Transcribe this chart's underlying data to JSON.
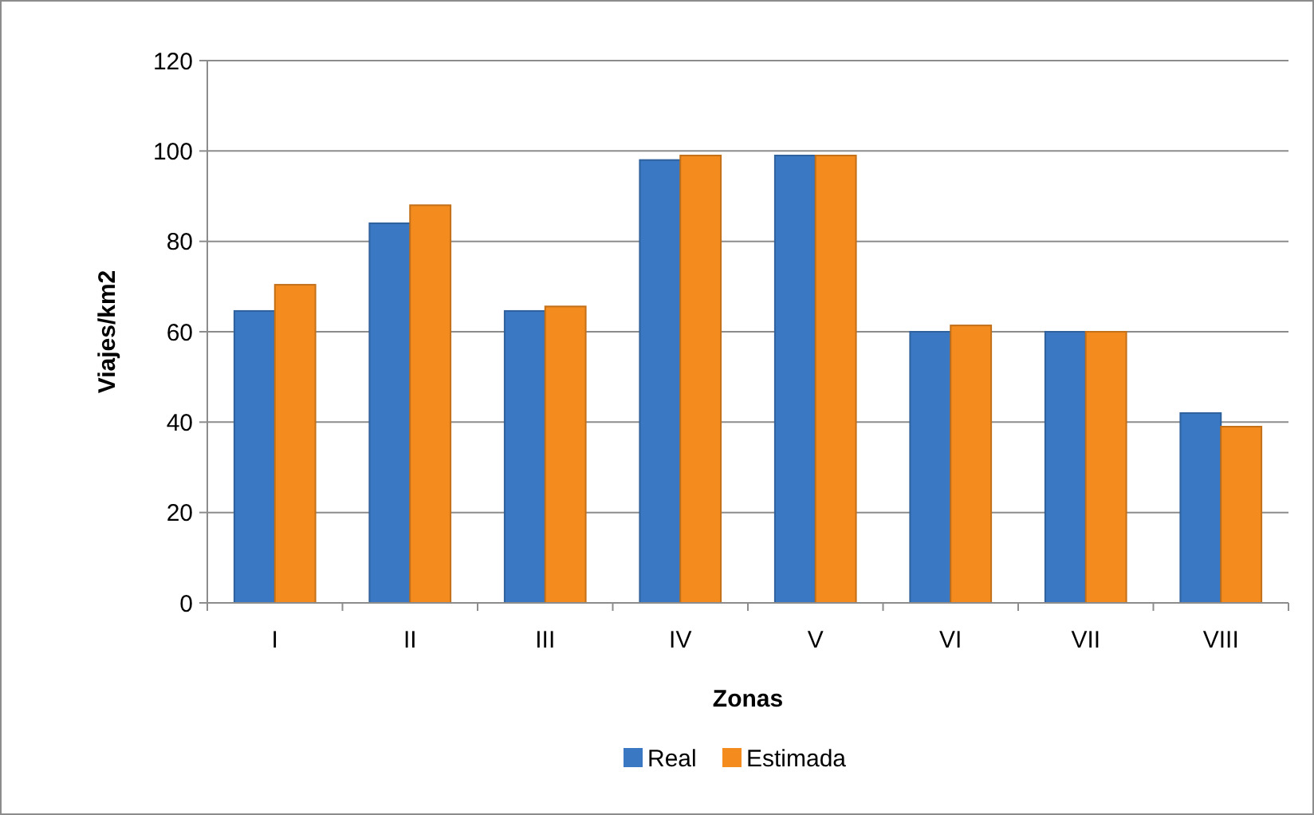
{
  "chart_data": {
    "type": "bar",
    "xlabel": "Zonas",
    "ylabel": "Viajes/km2",
    "categories": [
      "I",
      "II",
      "III",
      "IV",
      "V",
      "VI",
      "VII",
      "VIII"
    ],
    "series": [
      {
        "name": "Real",
        "color": "#3a78c3",
        "values": [
          64.6,
          84,
          64.6,
          98,
          99,
          60,
          60,
          42
        ]
      },
      {
        "name": "Estimada",
        "color": "#f38b1f",
        "values": [
          70.4,
          88,
          65.6,
          99,
          99,
          61.4,
          60,
          39
        ]
      }
    ],
    "ylim": [
      0,
      120
    ],
    "yticks": [
      0,
      20,
      40,
      60,
      80,
      100,
      120
    ],
    "grid": "y",
    "legend": "bottom"
  }
}
